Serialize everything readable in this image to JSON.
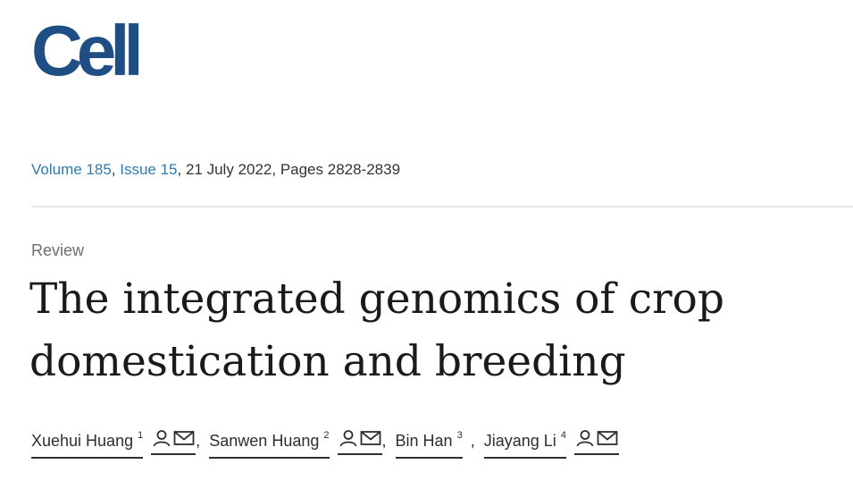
{
  "journal": {
    "logo_text": "Cell",
    "brand_color": "#1f4e84"
  },
  "citation": {
    "volume": "Volume 185",
    "separator1": ", ",
    "issue": "Issue 15",
    "rest": ", 21 July 2022, Pages 2828-2839",
    "link_color": "#2f7ab0"
  },
  "article": {
    "type": "Review",
    "title": "The integrated genomics of crop domestication and breeding"
  },
  "authors": [
    {
      "name": "Xuehui Huang",
      "affiliation": "1",
      "icons": [
        "person-icon",
        "mail-icon"
      ]
    },
    {
      "name": "Sanwen Huang",
      "affiliation": "2",
      "icons": [
        "person-icon",
        "mail-icon"
      ]
    },
    {
      "name": "Bin Han",
      "affiliation": "3"
    },
    {
      "name": "Jiayang Li",
      "affiliation": "4",
      "icons": [
        "person-icon",
        "mail-icon"
      ]
    }
  ],
  "author_separator": ","
}
